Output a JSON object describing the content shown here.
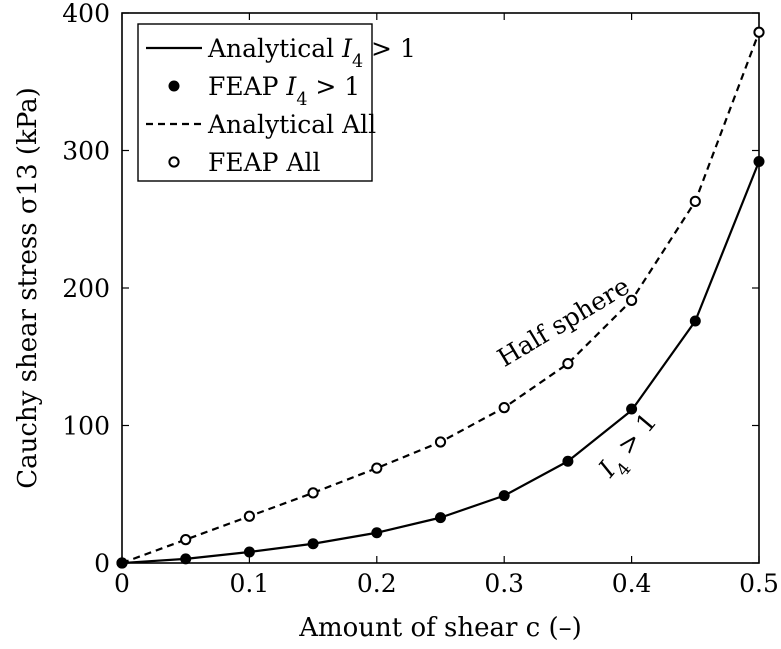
{
  "chart_data": {
    "type": "line",
    "xlabel": "Amount of shear c (–)",
    "ylabel": "Cauchy shear stress σ13 (kPa)",
    "xlim": [
      0,
      0.5
    ],
    "ylim": [
      0,
      400
    ],
    "x_ticks": [
      "0",
      "0.1",
      "0.2",
      "0.3",
      "0.4",
      "0.5"
    ],
    "y_ticks": [
      "0",
      "100",
      "200",
      "300",
      "400"
    ],
    "x": [
      0,
      0.05,
      0.1,
      0.15,
      0.2,
      0.25,
      0.3,
      0.35,
      0.4,
      0.45,
      0.5
    ],
    "grid": false,
    "legend_position": "top-left",
    "series": [
      {
        "name": "Analytical I4 > 1",
        "style": "solid-line",
        "values": [
          0,
          3,
          8,
          14,
          22,
          33,
          49,
          74,
          111,
          176,
          292
        ]
      },
      {
        "name": "FEAP I4 > 1",
        "style": "filled-markers",
        "values": [
          0,
          3,
          8,
          14,
          22,
          33,
          49,
          74,
          112,
          176,
          292
        ]
      },
      {
        "name": "Analytical All",
        "style": "dashed-line",
        "values": [
          0,
          17,
          34,
          51,
          69,
          88,
          113,
          145,
          191,
          263,
          386
        ]
      },
      {
        "name": "FEAP All",
        "style": "open-markers",
        "values": [
          0,
          17,
          34,
          51,
          69,
          88,
          113,
          145,
          191,
          263,
          386
        ]
      }
    ],
    "annotations": [
      {
        "text": "Half sphere",
        "x": 0.35,
        "y": 170,
        "rotation_deg": -31
      },
      {
        "text": "I4 > 1",
        "x": 0.402,
        "y": 82,
        "rotation_deg": -50
      }
    ]
  }
}
